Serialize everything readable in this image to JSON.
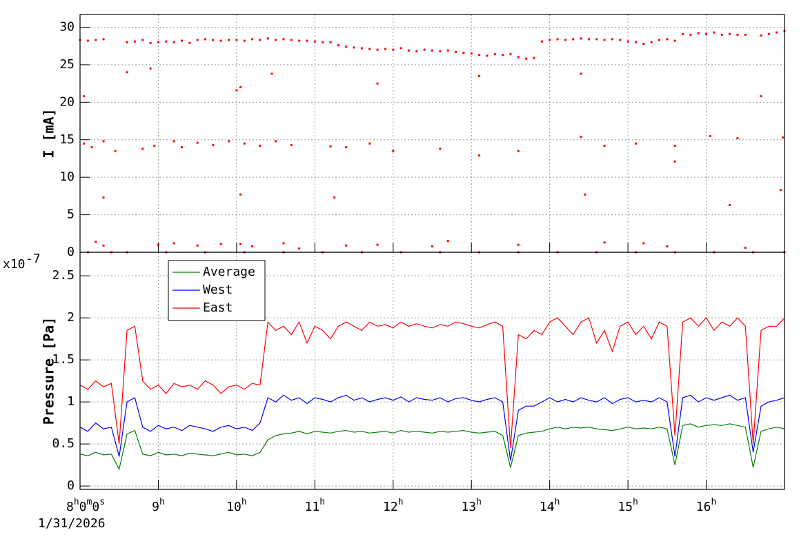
{
  "chart_data": [
    {
      "type": "scatter",
      "ylabel": "I [mA]",
      "color": "#ff0000",
      "x": [
        8.0,
        8.1,
        8.2,
        8.3,
        8.6,
        8.7,
        8.8,
        8.9,
        9.0,
        9.1,
        9.2,
        9.3,
        9.4,
        9.5,
        9.6,
        9.7,
        9.8,
        9.9,
        10.0,
        10.1,
        10.2,
        10.3,
        10.4,
        10.5,
        10.6,
        10.7,
        10.8,
        10.9,
        11.0,
        11.1,
        11.2,
        11.3,
        11.4,
        11.5,
        11.6,
        11.7,
        11.8,
        11.9,
        12.0,
        12.1,
        12.2,
        12.3,
        12.4,
        12.5,
        12.6,
        12.7,
        12.8,
        12.9,
        13.0,
        13.1,
        13.2,
        13.3,
        13.4,
        13.5,
        13.6,
        13.7,
        13.8,
        13.9,
        14.0,
        14.1,
        14.2,
        14.3,
        14.4,
        14.5,
        14.6,
        14.7,
        14.8,
        14.9,
        15.0,
        15.1,
        15.2,
        15.3,
        15.4,
        15.5,
        15.6,
        15.7,
        15.8,
        15.9,
        16.0,
        16.1,
        16.2,
        16.3,
        16.4,
        16.5,
        16.7,
        16.8,
        16.9,
        17.0,
        8.05,
        8.3,
        8.6,
        8.9,
        10.0,
        10.05,
        10.05,
        10.45,
        11.25,
        11.8,
        13.1,
        14.4,
        14.45,
        15.6,
        16.3,
        16.7,
        16.95,
        8.05,
        8.15,
        8.3,
        8.45,
        8.8,
        8.95,
        9.2,
        9.3,
        9.5,
        9.7,
        9.9,
        10.1,
        10.3,
        10.5,
        10.7,
        11.2,
        11.4,
        11.7,
        12.0,
        12.6,
        13.1,
        13.6,
        14.4,
        14.7,
        15.1,
        15.6,
        16.05,
        16.4,
        16.98,
        8.2,
        8.3,
        9.0,
        9.2,
        9.5,
        9.8,
        10.05,
        10.2,
        10.6,
        10.8,
        11.4,
        11.8,
        12.5,
        12.7,
        13.6,
        14.7,
        15.2,
        15.5,
        16.5,
        8.1,
        8.4,
        8.6,
        9.1,
        9.6,
        10.1,
        10.6,
        11.1,
        11.6,
        12.1,
        12.6,
        13.1,
        13.6,
        14.1,
        14.6,
        15.1,
        15.6,
        16.1,
        16.6,
        17.0
      ],
      "values": [
        28.3,
        28.2,
        28.3,
        28.4,
        28.0,
        28.1,
        28.3,
        27.9,
        28.0,
        28.1,
        28.0,
        28.2,
        27.9,
        28.3,
        28.4,
        28.3,
        28.2,
        28.3,
        28.3,
        28.2,
        28.4,
        28.3,
        28.5,
        28.3,
        28.4,
        28.3,
        28.2,
        28.2,
        28.1,
        28.0,
        28.0,
        27.6,
        27.4,
        27.3,
        27.2,
        27.1,
        27.0,
        27.1,
        27.0,
        27.2,
        26.9,
        26.8,
        27.0,
        26.9,
        26.8,
        26.9,
        26.7,
        26.6,
        26.5,
        26.3,
        26.2,
        26.4,
        26.3,
        26.4,
        26.0,
        25.8,
        25.9,
        28.1,
        28.3,
        28.4,
        28.3,
        28.4,
        28.5,
        28.4,
        28.4,
        28.3,
        28.4,
        28.3,
        28.1,
        28.0,
        27.8,
        28.0,
        28.3,
        28.4,
        28.2,
        29.1,
        29.0,
        29.2,
        29.1,
        29.3,
        29.0,
        29.1,
        29.0,
        29.0,
        28.9,
        29.1,
        29.3,
        29.5,
        20.8,
        7.3,
        24.0,
        24.5,
        21.6,
        22.0,
        7.7,
        23.8,
        7.3,
        22.5,
        23.5,
        23.8,
        7.7,
        12.1,
        6.3,
        20.8,
        8.3,
        14.5,
        14.0,
        14.8,
        13.5,
        13.8,
        14.2,
        14.8,
        14.0,
        14.6,
        14.3,
        14.8,
        14.5,
        14.2,
        14.8,
        14.3,
        14.1,
        14.0,
        14.5,
        13.5,
        13.8,
        12.9,
        13.5,
        15.4,
        14.2,
        14.5,
        14.2,
        15.5,
        15.2,
        15.3,
        1.4,
        0.9,
        1.0,
        1.2,
        0.9,
        1.1,
        1.1,
        0.8,
        1.2,
        0.5,
        0.9,
        1.0,
        0.8,
        1.5,
        1.0,
        1.3,
        1.2,
        0.8,
        0.6,
        0,
        0,
        0,
        0,
        0,
        0,
        0,
        0,
        0,
        0,
        0,
        0,
        0,
        0,
        0,
        0,
        0,
        0,
        0,
        0
      ],
      "xlim": [
        8,
        17
      ],
      "xticks": [
        9,
        10,
        11,
        12,
        13,
        14,
        15,
        16
      ],
      "ylim": [
        0,
        31.7
      ],
      "yticks": [
        0,
        5,
        10,
        15,
        20,
        25,
        30
      ],
      "grid": true
    },
    {
      "type": "line",
      "ylabel": "Pressure [Pa]",
      "y_multiplier": {
        "base": "x10",
        "exponent": "-7"
      },
      "date": "1/31/2026",
      "x": [
        8.0,
        8.1,
        8.2,
        8.3,
        8.4,
        8.5,
        8.6,
        8.7,
        8.8,
        8.9,
        9.0,
        9.1,
        9.2,
        9.3,
        9.4,
        9.5,
        9.6,
        9.7,
        9.8,
        9.9,
        10.0,
        10.1,
        10.2,
        10.3,
        10.4,
        10.5,
        10.6,
        10.7,
        10.8,
        10.9,
        11.0,
        11.1,
        11.2,
        11.3,
        11.4,
        11.5,
        11.6,
        11.7,
        11.8,
        11.9,
        12.0,
        12.1,
        12.2,
        12.3,
        12.4,
        12.5,
        12.6,
        12.7,
        12.8,
        12.9,
        13.0,
        13.1,
        13.2,
        13.3,
        13.4,
        13.5,
        13.6,
        13.7,
        13.8,
        13.9,
        14.0,
        14.1,
        14.2,
        14.3,
        14.4,
        14.5,
        14.6,
        14.7,
        14.8,
        14.9,
        15.0,
        15.1,
        15.2,
        15.3,
        15.4,
        15.5,
        15.6,
        15.7,
        15.8,
        15.9,
        16.0,
        16.1,
        16.2,
        16.3,
        16.4,
        16.5,
        16.6,
        16.7,
        16.8,
        16.9,
        17.0
      ],
      "series": [
        {
          "name": "Average",
          "color": "#008000",
          "values": [
            0.38,
            0.36,
            0.4,
            0.37,
            0.38,
            0.2,
            0.62,
            0.66,
            0.38,
            0.36,
            0.4,
            0.37,
            0.38,
            0.36,
            0.39,
            0.38,
            0.37,
            0.36,
            0.38,
            0.4,
            0.37,
            0.38,
            0.36,
            0.4,
            0.55,
            0.6,
            0.62,
            0.63,
            0.65,
            0.62,
            0.65,
            0.64,
            0.63,
            0.65,
            0.66,
            0.64,
            0.65,
            0.63,
            0.64,
            0.65,
            0.63,
            0.66,
            0.64,
            0.65,
            0.64,
            0.63,
            0.65,
            0.64,
            0.65,
            0.66,
            0.64,
            0.63,
            0.64,
            0.65,
            0.6,
            0.22,
            0.6,
            0.63,
            0.64,
            0.65,
            0.68,
            0.7,
            0.68,
            0.7,
            0.69,
            0.7,
            0.68,
            0.67,
            0.66,
            0.68,
            0.7,
            0.68,
            0.69,
            0.68,
            0.7,
            0.68,
            0.25,
            0.72,
            0.74,
            0.7,
            0.72,
            0.73,
            0.72,
            0.74,
            0.72,
            0.7,
            0.22,
            0.65,
            0.68,
            0.7,
            0.68
          ]
        },
        {
          "name": "West",
          "color": "#0000ff",
          "values": [
            0.7,
            0.65,
            0.75,
            0.68,
            0.7,
            0.35,
            1.0,
            1.05,
            0.7,
            0.65,
            0.72,
            0.68,
            0.7,
            0.66,
            0.72,
            0.7,
            0.68,
            0.65,
            0.7,
            0.72,
            0.68,
            0.7,
            0.66,
            0.75,
            1.05,
            1.0,
            1.08,
            1.02,
            1.05,
            0.98,
            1.05,
            1.03,
            1.0,
            1.05,
            1.08,
            1.02,
            1.05,
            1.0,
            1.03,
            1.05,
            1.02,
            1.06,
            1.0,
            1.05,
            1.03,
            1.02,
            1.05,
            1.0,
            1.04,
            1.05,
            1.02,
            1.0,
            1.03,
            1.05,
            1.0,
            0.3,
            0.9,
            0.95,
            0.95,
            1.0,
            1.05,
            1.0,
            1.03,
            1.0,
            1.05,
            1.02,
            1.0,
            1.05,
            0.98,
            1.03,
            1.05,
            1.0,
            1.02,
            1.0,
            1.05,
            1.0,
            0.35,
            1.05,
            1.08,
            1.0,
            1.05,
            1.02,
            1.05,
            1.08,
            1.02,
            1.05,
            0.4,
            0.95,
            1.0,
            1.02,
            1.05
          ]
        },
        {
          "name": "East",
          "color": "#ff0000",
          "values": [
            1.2,
            1.15,
            1.25,
            1.18,
            1.22,
            0.5,
            1.85,
            1.9,
            1.25,
            1.15,
            1.2,
            1.1,
            1.22,
            1.18,
            1.2,
            1.15,
            1.25,
            1.2,
            1.1,
            1.18,
            1.2,
            1.15,
            1.22,
            1.2,
            1.95,
            1.85,
            1.9,
            1.8,
            1.95,
            1.7,
            1.9,
            1.85,
            1.75,
            1.9,
            1.95,
            1.9,
            1.85,
            1.95,
            1.9,
            1.92,
            1.88,
            1.95,
            1.9,
            1.93,
            1.9,
            1.88,
            1.92,
            1.9,
            1.95,
            1.93,
            1.9,
            1.88,
            1.92,
            1.95,
            1.9,
            0.45,
            1.8,
            1.75,
            1.85,
            1.8,
            1.95,
            2.0,
            1.9,
            1.8,
            1.95,
            2.0,
            1.7,
            1.85,
            1.6,
            1.9,
            1.95,
            1.8,
            1.9,
            1.75,
            1.95,
            1.9,
            0.6,
            1.95,
            2.0,
            1.9,
            2.0,
            1.85,
            1.95,
            1.9,
            2.0,
            1.9,
            0.5,
            1.85,
            1.9,
            1.9,
            2.0
          ]
        }
      ],
      "xlim": [
        8,
        17
      ],
      "xticks": [
        {
          "value": 8,
          "label": "8h0m0s"
        },
        {
          "value": 9,
          "label": "9h"
        },
        {
          "value": 10,
          "label": "10h"
        },
        {
          "value": 11,
          "label": "11h"
        },
        {
          "value": 12,
          "label": "12h"
        },
        {
          "value": 13,
          "label": "13h"
        },
        {
          "value": 14,
          "label": "14h"
        },
        {
          "value": 15,
          "label": "15h"
        },
        {
          "value": 16,
          "label": "16h"
        }
      ],
      "ylim": [
        -0.04,
        2.78
      ],
      "yticks": [
        0,
        0.5,
        1,
        1.5,
        2,
        2.5
      ],
      "grid": true,
      "legend": "top-left"
    }
  ]
}
